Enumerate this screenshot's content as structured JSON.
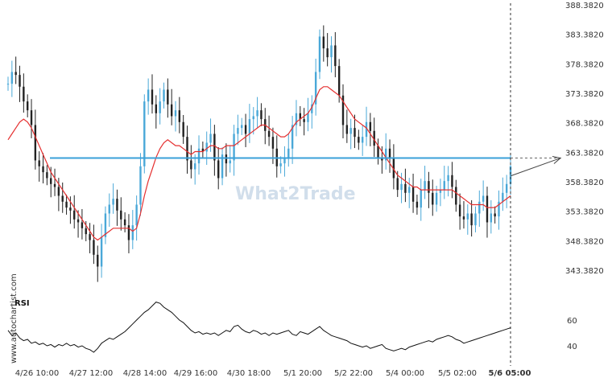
{
  "watermark": "What2Trade",
  "side_watermark": "www.autochartist.com",
  "chart_data": {
    "type": "candlestick",
    "y_ticks": [
      "388.3820",
      "383.3820",
      "378.3820",
      "373.3820",
      "368.3820",
      "363.3820",
      "358.3820",
      "353.3820",
      "348.3820",
      "343.3820"
    ],
    "ylim": [
      340.0,
      388.382
    ],
    "x_ticks": [
      "4/26 10:00",
      "4/27 12:00",
      "4/28 14:00",
      "4/29 16:00",
      "4/30 18:00",
      "5/1 20:00",
      "5/2 22:00",
      "5/4 00:00",
      "5/5 02:00",
      "5/6 05:00"
    ],
    "last_tick_bold": "5/6 05:00",
    "resistance_level": 362.4,
    "close_series": [
      375.0,
      377.0,
      376.5,
      374.5,
      372.0,
      370.5,
      368.0,
      362.0,
      361.0,
      360.0,
      359.0,
      358.0,
      357.5,
      356.0,
      355.0,
      354.0,
      353.5,
      352.0,
      351.5,
      350.5,
      349.5,
      348.5,
      346.0,
      344.0,
      349.0,
      353.0,
      354.5,
      355.5,
      353.5,
      352.0,
      351.0,
      348.5,
      351.0,
      354.5,
      361.0,
      372.0,
      374.0,
      371.5,
      370.0,
      372.0,
      374.0,
      371.5,
      369.5,
      370.5,
      368.5,
      366.0,
      362.0,
      360.5,
      361.5,
      364.0,
      363.5,
      365.0,
      366.5,
      362.0,
      359.0,
      363.0,
      361.5,
      362.0,
      366.5,
      367.5,
      368.0,
      366.5,
      369.0,
      369.5,
      370.5,
      369.0,
      367.0,
      366.0,
      364.0,
      361.0,
      361.5,
      362.5,
      364.0,
      368.0,
      370.0,
      369.0,
      368.5,
      370.0,
      371.5,
      377.0,
      383.0,
      381.0,
      379.5,
      381.5,
      378.0,
      373.0,
      368.0,
      366.5,
      367.5,
      366.0,
      365.0,
      366.0,
      368.5,
      367.0,
      364.5,
      362.5,
      362.0,
      364.0,
      362.5,
      359.0,
      357.0,
      358.0,
      356.5,
      357.5,
      355.0,
      354.0,
      357.0,
      358.5,
      356.5,
      354.5,
      356.5,
      357.0,
      358.5,
      359.5,
      357.5,
      354.5,
      352.5,
      352.0,
      353.0,
      351.0,
      353.0,
      355.0,
      356.0,
      351.5,
      353.0,
      352.5,
      355.0,
      356.5,
      358.0,
      361.0
    ],
    "ma_series": [
      365.5,
      366.5,
      367.5,
      368.5,
      369.0,
      368.5,
      367.5,
      366.0,
      364.5,
      363.0,
      361.5,
      360.0,
      359.0,
      358.0,
      357.0,
      356.0,
      355.0,
      354.0,
      353.0,
      352.0,
      351.0,
      350.0,
      349.0,
      348.5,
      349.0,
      349.5,
      350.0,
      350.5,
      350.5,
      350.5,
      350.5,
      350.5,
      350.0,
      350.5,
      353.0,
      356.0,
      358.5,
      360.5,
      362.5,
      364.0,
      365.0,
      365.5,
      365.0,
      364.5,
      364.5,
      364.0,
      363.5,
      363.0,
      363.5,
      363.5,
      363.5,
      364.0,
      364.5,
      364.5,
      364.0,
      364.0,
      364.5,
      364.5,
      364.5,
      365.0,
      365.5,
      366.0,
      366.5,
      367.0,
      367.5,
      368.0,
      368.0,
      367.5,
      367.0,
      366.5,
      366.0,
      366.0,
      366.5,
      367.5,
      368.5,
      369.0,
      369.5,
      370.0,
      371.0,
      372.5,
      374.0,
      374.5,
      374.5,
      374.0,
      373.5,
      373.0,
      372.0,
      371.0,
      370.0,
      369.0,
      368.5,
      368.0,
      367.5,
      366.5,
      365.5,
      364.5,
      363.5,
      362.5,
      361.5,
      360.5,
      359.5,
      359.0,
      358.5,
      358.0,
      357.5,
      357.5,
      357.0,
      357.0,
      357.0,
      357.0,
      357.0,
      357.0,
      357.0,
      357.0,
      357.0,
      356.5,
      356.0,
      355.5,
      355.0,
      354.5,
      354.5,
      354.5,
      354.5,
      354.0,
      354.0,
      354.0,
      354.5,
      355.0,
      355.5,
      356.0
    ],
    "rsi": {
      "label": "RSI",
      "y_ticks": [
        "60",
        "40"
      ],
      "ylim": [
        25,
        85
      ],
      "values": [
        52,
        48,
        50,
        46,
        44,
        45,
        42,
        43,
        41,
        42,
        40,
        41,
        39,
        41,
        40,
        42,
        40,
        41,
        39,
        40,
        38,
        37,
        35,
        38,
        42,
        44,
        46,
        45,
        47,
        49,
        51,
        54,
        57,
        60,
        63,
        66,
        68,
        71,
        74,
        73,
        70,
        68,
        66,
        63,
        60,
        58,
        55,
        52,
        50,
        51,
        49,
        50,
        49,
        50,
        48,
        50,
        52,
        51,
        55,
        56,
        53,
        51,
        50,
        52,
        51,
        49,
        50,
        48,
        50,
        49,
        50,
        51,
        52,
        49,
        48,
        51,
        50,
        49,
        51,
        53,
        55,
        52,
        50,
        48,
        47,
        46,
        45,
        44,
        42,
        41,
        40,
        39,
        40,
        38,
        39,
        40,
        41,
        38,
        37,
        36,
        37,
        38,
        37,
        39,
        40,
        41,
        42,
        43,
        44,
        43,
        45,
        46,
        47,
        48,
        47,
        45,
        44,
        42,
        43,
        44,
        45,
        46,
        47,
        48,
        49,
        50,
        51,
        52,
        53,
        54
      ]
    },
    "projection": {
      "from_index": 129,
      "to_value": 362.4
    }
  }
}
